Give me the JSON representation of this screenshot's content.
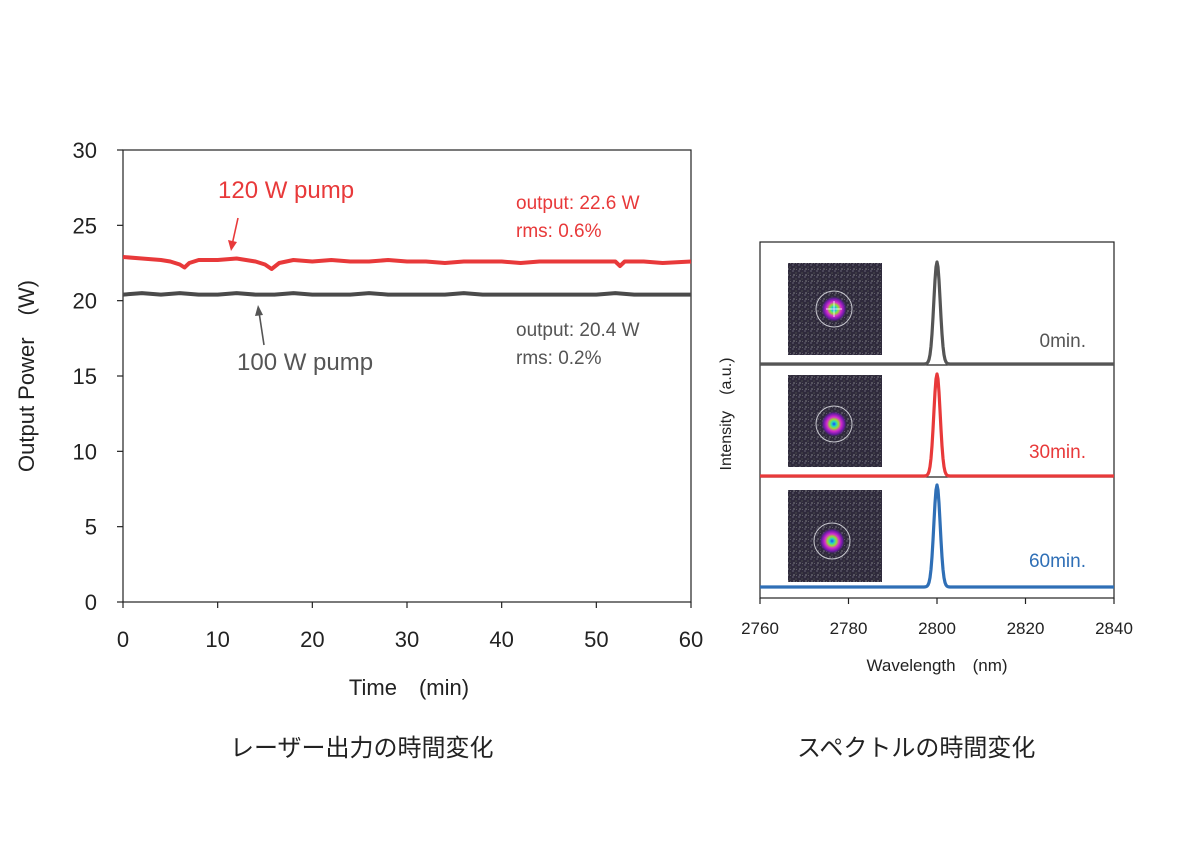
{
  "captions": {
    "left": "レーザー出力の時間変化",
    "right": "スペクトルの時間変化"
  },
  "chart_data": [
    {
      "type": "line",
      "title": "",
      "xlabel": "Time　(min)",
      "ylabel": "Output Power　(W)",
      "xlim": [
        0,
        60
      ],
      "ylim": [
        0,
        30
      ],
      "xticks": [
        0,
        10,
        20,
        30,
        40,
        50,
        60
      ],
      "yticks": [
        0,
        5,
        10,
        15,
        20,
        25,
        30
      ],
      "grid": false,
      "series": [
        {
          "name": "120 W pump",
          "color": "#e8393a",
          "x": [
            0,
            2,
            4,
            5,
            6,
            6.5,
            7,
            8,
            10,
            12,
            14,
            15,
            15.7,
            16.5,
            18,
            20,
            22,
            24,
            26,
            28,
            30,
            32,
            34,
            36,
            38,
            40,
            42,
            44,
            46,
            48,
            50,
            52,
            52.5,
            53,
            55,
            57,
            60
          ],
          "y": [
            22.9,
            22.8,
            22.7,
            22.6,
            22.4,
            22.2,
            22.5,
            22.7,
            22.7,
            22.8,
            22.6,
            22.4,
            22.1,
            22.5,
            22.7,
            22.6,
            22.7,
            22.6,
            22.6,
            22.7,
            22.6,
            22.6,
            22.5,
            22.6,
            22.6,
            22.6,
            22.5,
            22.6,
            22.6,
            22.6,
            22.6,
            22.6,
            22.3,
            22.6,
            22.6,
            22.5,
            22.6
          ]
        },
        {
          "name": "100 W pump",
          "color": "#4a4a4a",
          "x": [
            0,
            2,
            4,
            6,
            8,
            10,
            12,
            14,
            16,
            18,
            20,
            22,
            24,
            26,
            28,
            30,
            32,
            34,
            36,
            38,
            40,
            42,
            44,
            46,
            48,
            50,
            52,
            54,
            56,
            58,
            60
          ],
          "y": [
            20.4,
            20.5,
            20.4,
            20.5,
            20.4,
            20.4,
            20.5,
            20.4,
            20.4,
            20.5,
            20.4,
            20.4,
            20.4,
            20.5,
            20.4,
            20.4,
            20.4,
            20.4,
            20.5,
            20.4,
            20.4,
            20.4,
            20.4,
            20.4,
            20.4,
            20.4,
            20.5,
            20.4,
            20.4,
            20.4,
            20.4
          ]
        }
      ],
      "annotations": [
        {
          "text": "120 W pump",
          "color": "#e8393a"
        },
        {
          "text": "100 W pump",
          "color": "#555555"
        },
        {
          "lines": [
            "output: 22.6 W",
            "rms: 0.6%"
          ],
          "color": "#e8393a"
        },
        {
          "lines": [
            "output: 20.4 W",
            "rms: 0.2%"
          ],
          "color": "#555555"
        }
      ]
    },
    {
      "type": "line",
      "title": "",
      "xlabel": "Wavelength　(nm)",
      "ylabel": "Intensity　(a.u.)",
      "xlim": [
        2760,
        2840
      ],
      "xticks": [
        2760,
        2780,
        2800,
        2820,
        2840
      ],
      "grid": false,
      "stacked": true,
      "series": [
        {
          "name": "0min.",
          "color": "#555555",
          "peak_wavelength": 2800
        },
        {
          "name": "30min.",
          "color": "#e8393a",
          "peak_wavelength": 2800
        },
        {
          "name": "60min.",
          "color": "#2f6fb6",
          "peak_wavelength": 2800
        }
      ]
    }
  ]
}
